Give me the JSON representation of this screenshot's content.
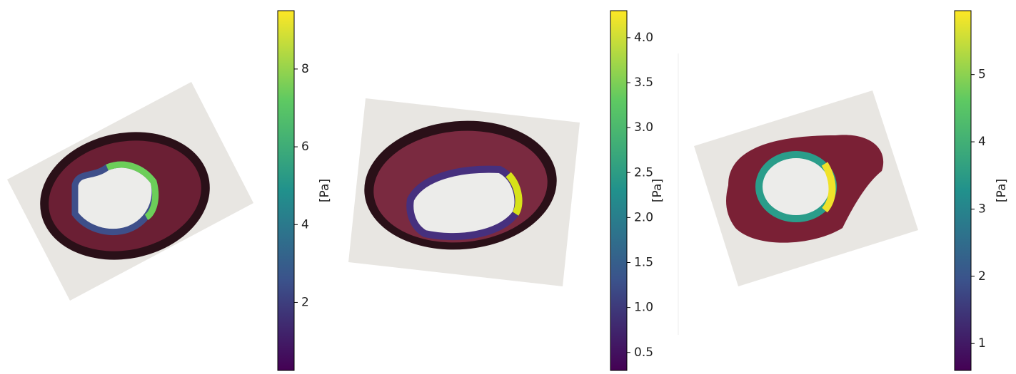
{
  "chart_data": [
    {
      "type": "colorbar",
      "ylabel": "[Pa]",
      "colormap": "viridis",
      "ylim": [
        0.25,
        9.5
      ],
      "yticks": [
        2,
        4,
        6,
        8
      ]
    },
    {
      "type": "colorbar",
      "ylabel": "[Pa]",
      "colormap": "viridis",
      "ylim": [
        0.3,
        4.3
      ],
      "yticks": [
        {
          "value": 0.5,
          "label": "0.5"
        },
        {
          "value": 1,
          "label": "1.0"
        },
        {
          "value": 1.5,
          "label": "1.5"
        },
        {
          "value": 2,
          "label": "2.0"
        },
        {
          "value": 2.5,
          "label": "2.5"
        },
        {
          "value": 3,
          "label": "3.0"
        },
        {
          "value": 3.5,
          "label": "3.5"
        },
        {
          "value": 4,
          "label": "4.0"
        }
      ]
    },
    {
      "type": "colorbar",
      "ylabel": "[Pa]",
      "colormap": "viridis",
      "ylim": [
        0.6,
        5.95
      ],
      "yticks": [
        1,
        2,
        3,
        4,
        5
      ]
    }
  ]
}
